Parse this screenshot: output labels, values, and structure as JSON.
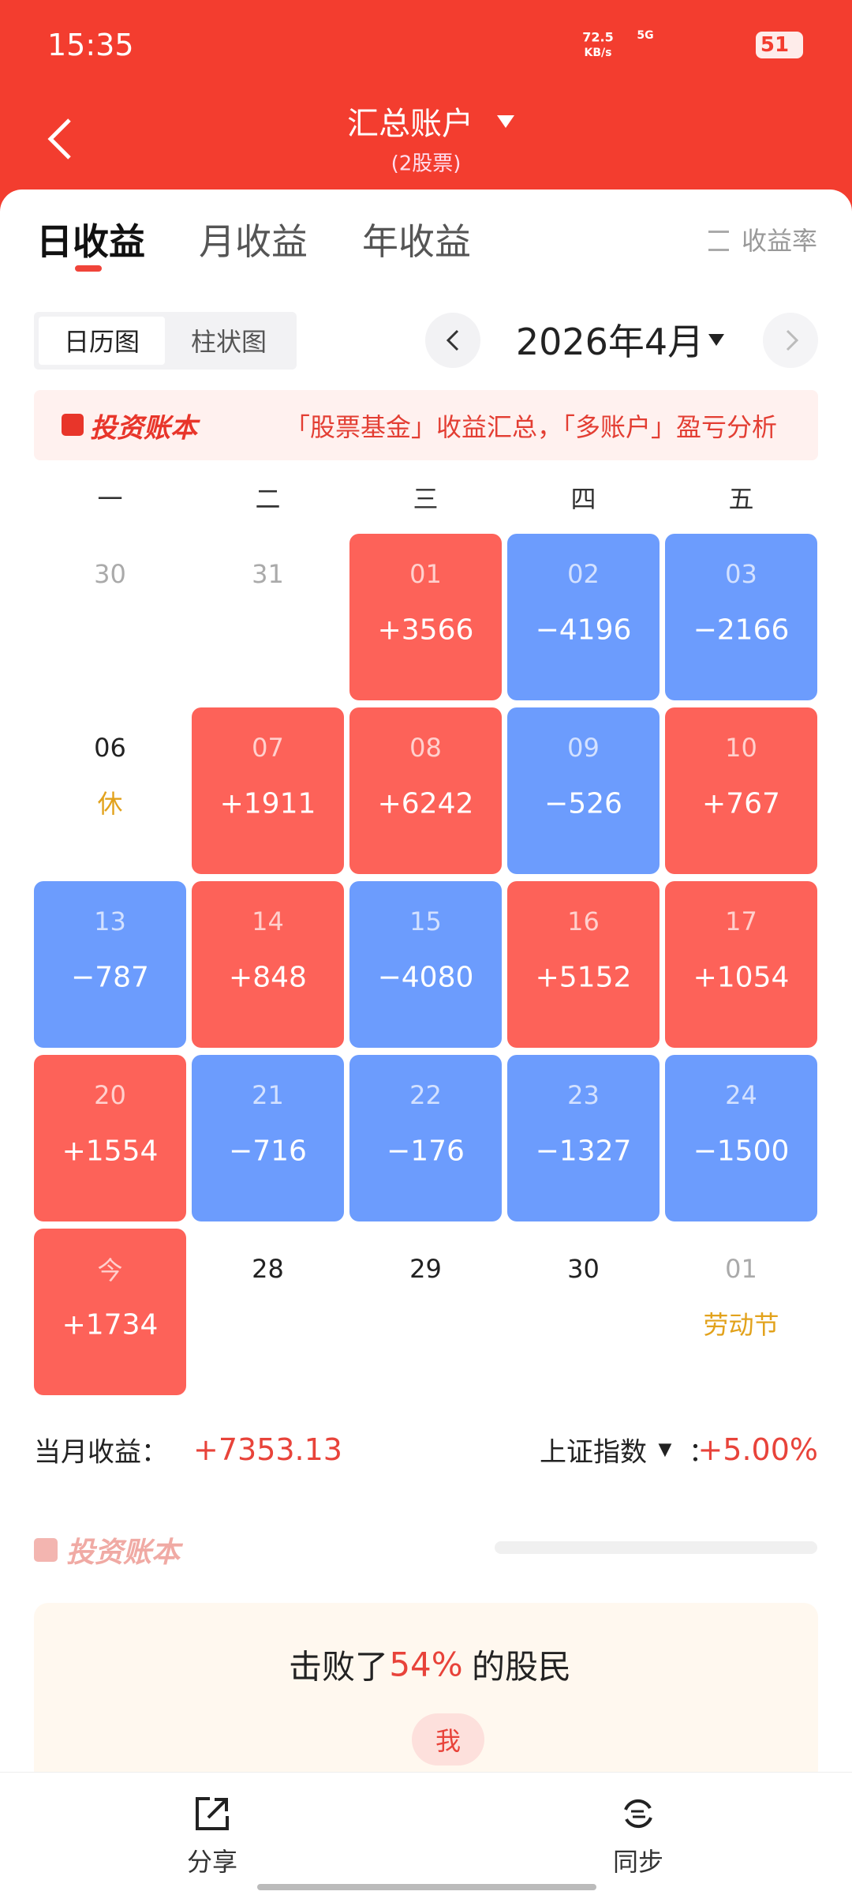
{
  "status": {
    "time": "15:35",
    "speed": "72.5",
    "speed_unit": "KB/s",
    "network": "5G",
    "battery": "51"
  },
  "header": {
    "title": "汇总账户",
    "subtitle": "(2股票)"
  },
  "tabs": [
    "日收益",
    "月收益",
    "年收益"
  ],
  "rate_toggle": "收益率",
  "views": [
    "日历图",
    "柱状图"
  ],
  "month": "2026年4月",
  "banner": {
    "brand": "投资账本",
    "text": "「股票基金」收益汇总，「多账户」盈亏分析"
  },
  "weekdays": [
    "一",
    "二",
    "三",
    "四",
    "五"
  ],
  "calendar": [
    [
      {
        "day": "30",
        "dim": true
      },
      {
        "day": "31",
        "dim": true
      },
      {
        "day": "01",
        "value": "+3566"
      },
      {
        "day": "02",
        "value": "−4196"
      },
      {
        "day": "03",
        "value": "−2166"
      }
    ],
    [
      {
        "day": "06",
        "note": "休"
      },
      {
        "day": "07",
        "value": "+1911"
      },
      {
        "day": "08",
        "value": "+6242"
      },
      {
        "day": "09",
        "value": "−526"
      },
      {
        "day": "10",
        "value": "+767"
      }
    ],
    [
      {
        "day": "13",
        "value": "−787"
      },
      {
        "day": "14",
        "value": "+848"
      },
      {
        "day": "15",
        "value": "−4080"
      },
      {
        "day": "16",
        "value": "+5152"
      },
      {
        "day": "17",
        "value": "+1054"
      }
    ],
    [
      {
        "day": "20",
        "value": "+1554"
      },
      {
        "day": "21",
        "value": "−716"
      },
      {
        "day": "22",
        "value": "−176"
      },
      {
        "day": "23",
        "value": "−1327"
      },
      {
        "day": "24",
        "value": "−1500"
      }
    ],
    [
      {
        "day": "今",
        "value": "+1734"
      },
      {
        "day": "28"
      },
      {
        "day": "29"
      },
      {
        "day": "30"
      },
      {
        "day": "01",
        "dim": true,
        "note": "劳动节"
      }
    ]
  ],
  "summary": {
    "label": "当月收益：",
    "value": "+7353.13",
    "index_label": "上证指数",
    "index_arrow": "▼",
    "index_colon": "：",
    "index_value": "+5.00%"
  },
  "brand2": "投资账本",
  "rank": {
    "before": "击败了",
    "percent": "54%",
    "after": "的股民",
    "me": "我"
  },
  "bottom": [
    "分享",
    "同步"
  ]
}
